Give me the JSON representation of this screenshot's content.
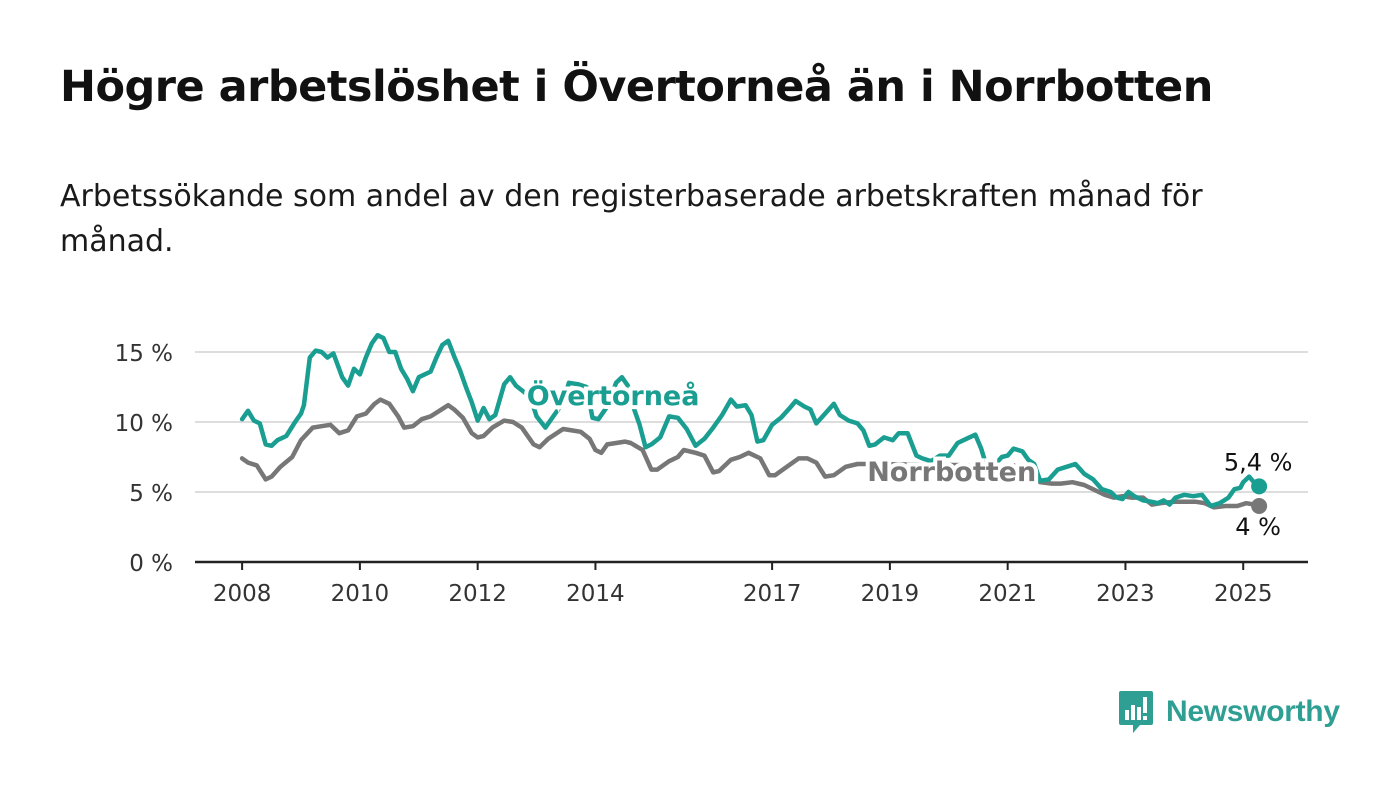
{
  "header": {
    "title": "Högre arbetslöshet i Övertorneå än i Norrbotten",
    "subtitle": "Arbetssökande som andel av den registerbaserade arbetskraften månad för månad."
  },
  "brand": {
    "name": "Newsworthy",
    "icon": "newsworthy-logo-icon",
    "color": "#2f9f94"
  },
  "chart_data": {
    "type": "line",
    "title": "Högre arbetslöshet i Övertorneå än i Norrbotten",
    "subtitle": "Arbetssökande som andel av den registerbaserade arbetskraften månad för månad.",
    "xlabel": "",
    "ylabel": "",
    "y_ticks": [
      0,
      5,
      10,
      15
    ],
    "y_tick_labels": [
      "0 %",
      "5 %",
      "10 %",
      "15 %"
    ],
    "ylim": [
      0,
      15.5
    ],
    "x_ticks": [
      2008,
      2010,
      2012,
      2014,
      2017,
      2019,
      2021,
      2023,
      2025
    ],
    "x_tick_labels": [
      "2008",
      "2010",
      "2012",
      "2014",
      "2017",
      "2019",
      "2021",
      "2023",
      "2025"
    ],
    "xlim": [
      2007.2,
      2026.1
    ],
    "grid": true,
    "legend": "inline labels",
    "series": [
      {
        "name": "Övertorneå",
        "color": "#1a9e91",
        "end_label": "5,4 %",
        "points": [
          [
            2008.0,
            10.2
          ],
          [
            2008.1,
            10.8
          ],
          [
            2008.2,
            10.1
          ],
          [
            2008.3,
            9.9
          ],
          [
            2008.4,
            8.4
          ],
          [
            2008.5,
            8.3
          ],
          [
            2008.6,
            8.7
          ],
          [
            2008.75,
            9.0
          ],
          [
            2008.9,
            10.0
          ],
          [
            2009.0,
            10.6
          ],
          [
            2009.05,
            11.2
          ],
          [
            2009.15,
            14.6
          ],
          [
            2009.25,
            15.1
          ],
          [
            2009.35,
            15.0
          ],
          [
            2009.45,
            14.6
          ],
          [
            2009.55,
            14.9
          ],
          [
            2009.7,
            13.2
          ],
          [
            2009.8,
            12.6
          ],
          [
            2009.9,
            13.8
          ],
          [
            2010.0,
            13.4
          ],
          [
            2010.1,
            14.6
          ],
          [
            2010.2,
            15.6
          ],
          [
            2010.3,
            16.2
          ],
          [
            2010.4,
            16.0
          ],
          [
            2010.5,
            15.0
          ],
          [
            2010.6,
            15.0
          ],
          [
            2010.7,
            13.8
          ],
          [
            2010.8,
            13.1
          ],
          [
            2010.9,
            12.2
          ],
          [
            2011.0,
            13.2
          ],
          [
            2011.2,
            13.6
          ],
          [
            2011.3,
            14.6
          ],
          [
            2011.4,
            15.5
          ],
          [
            2011.5,
            15.8
          ],
          [
            2011.6,
            14.7
          ],
          [
            2011.7,
            13.7
          ],
          [
            2011.8,
            12.5
          ],
          [
            2011.9,
            11.4
          ],
          [
            2012.0,
            10.1
          ],
          [
            2012.1,
            11.0
          ],
          [
            2012.2,
            10.2
          ],
          [
            2012.3,
            10.5
          ],
          [
            2012.45,
            12.7
          ],
          [
            2012.55,
            13.2
          ],
          [
            2012.65,
            12.6
          ],
          [
            2012.8,
            12.1
          ],
          [
            2012.9,
            11.7
          ],
          [
            2013.0,
            10.4
          ],
          [
            2013.15,
            9.6
          ],
          [
            2013.3,
            10.5
          ],
          [
            2013.45,
            11.4
          ],
          [
            2013.55,
            12.8
          ],
          [
            2013.7,
            12.7
          ],
          [
            2013.85,
            12.5
          ],
          [
            2013.95,
            10.3
          ],
          [
            2014.05,
            10.2
          ],
          [
            2014.2,
            11.1
          ],
          [
            2014.35,
            12.8
          ],
          [
            2014.45,
            13.2
          ],
          [
            2014.55,
            12.6
          ],
          [
            2014.65,
            11.0
          ],
          [
            2014.75,
            9.8
          ],
          [
            2014.85,
            8.2
          ],
          [
            2014.95,
            8.4
          ],
          [
            2015.1,
            8.9
          ],
          [
            2015.25,
            10.4
          ],
          [
            2015.4,
            10.3
          ],
          [
            2015.55,
            9.5
          ],
          [
            2015.7,
            8.3
          ],
          [
            2015.85,
            8.8
          ],
          [
            2016.0,
            9.6
          ],
          [
            2016.15,
            10.5
          ],
          [
            2016.3,
            11.6
          ],
          [
            2016.4,
            11.1
          ],
          [
            2016.55,
            11.2
          ],
          [
            2016.65,
            10.5
          ],
          [
            2016.75,
            8.6
          ],
          [
            2016.85,
            8.7
          ],
          [
            2017.0,
            9.8
          ],
          [
            2017.15,
            10.3
          ],
          [
            2017.3,
            11.0
          ],
          [
            2017.4,
            11.5
          ],
          [
            2017.55,
            11.1
          ],
          [
            2017.65,
            10.9
          ],
          [
            2017.75,
            9.9
          ],
          [
            2017.9,
            10.6
          ],
          [
            2018.05,
            11.3
          ],
          [
            2018.15,
            10.5
          ],
          [
            2018.3,
            10.1
          ],
          [
            2018.45,
            9.9
          ],
          [
            2018.55,
            9.4
          ],
          [
            2018.65,
            8.3
          ],
          [
            2018.75,
            8.4
          ],
          [
            2018.9,
            8.9
          ],
          [
            2019.05,
            8.7
          ],
          [
            2019.15,
            9.2
          ],
          [
            2019.3,
            9.2
          ],
          [
            2019.45,
            7.6
          ],
          [
            2019.55,
            7.4
          ],
          [
            2019.7,
            7.2
          ],
          [
            2019.85,
            7.6
          ],
          [
            2020.0,
            7.6
          ],
          [
            2020.15,
            8.5
          ],
          [
            2020.3,
            8.8
          ],
          [
            2020.45,
            9.1
          ],
          [
            2020.55,
            8.1
          ],
          [
            2020.65,
            6.7
          ],
          [
            2020.75,
            6.8
          ],
          [
            2020.9,
            7.5
          ],
          [
            2021.0,
            7.6
          ],
          [
            2021.1,
            8.1
          ],
          [
            2021.25,
            7.9
          ],
          [
            2021.35,
            7.3
          ],
          [
            2021.45,
            7.0
          ],
          [
            2021.55,
            5.8
          ],
          [
            2021.7,
            5.9
          ],
          [
            2021.85,
            6.6
          ],
          [
            2022.0,
            6.8
          ],
          [
            2022.15,
            7.0
          ],
          [
            2022.3,
            6.3
          ],
          [
            2022.45,
            5.9
          ],
          [
            2022.6,
            5.2
          ],
          [
            2022.75,
            5.0
          ],
          [
            2022.85,
            4.6
          ],
          [
            2022.95,
            4.5
          ],
          [
            2023.05,
            5.0
          ],
          [
            2023.15,
            4.7
          ],
          [
            2023.3,
            4.4
          ],
          [
            2023.45,
            4.3
          ],
          [
            2023.55,
            4.2
          ],
          [
            2023.65,
            4.4
          ],
          [
            2023.75,
            4.1
          ],
          [
            2023.85,
            4.6
          ],
          [
            2024.0,
            4.8
          ],
          [
            2024.15,
            4.7
          ],
          [
            2024.3,
            4.8
          ],
          [
            2024.45,
            4.0
          ],
          [
            2024.6,
            4.2
          ],
          [
            2024.75,
            4.6
          ],
          [
            2024.85,
            5.2
          ],
          [
            2024.95,
            5.3
          ],
          [
            2025.0,
            5.7
          ],
          [
            2025.1,
            6.1
          ],
          [
            2025.2,
            5.6
          ],
          [
            2025.27,
            5.4
          ]
        ]
      },
      {
        "name": "Norrbotten",
        "color": "#777777",
        "end_label": "4 %",
        "points": [
          [
            2008.0,
            7.4
          ],
          [
            2008.1,
            7.1
          ],
          [
            2008.25,
            6.9
          ],
          [
            2008.4,
            5.9
          ],
          [
            2008.5,
            6.1
          ],
          [
            2008.65,
            6.8
          ],
          [
            2008.85,
            7.5
          ],
          [
            2009.0,
            8.7
          ],
          [
            2009.2,
            9.6
          ],
          [
            2009.35,
            9.7
          ],
          [
            2009.5,
            9.8
          ],
          [
            2009.65,
            9.2
          ],
          [
            2009.8,
            9.4
          ],
          [
            2009.95,
            10.4
          ],
          [
            2010.1,
            10.6
          ],
          [
            2010.25,
            11.3
          ],
          [
            2010.35,
            11.6
          ],
          [
            2010.5,
            11.3
          ],
          [
            2010.65,
            10.4
          ],
          [
            2010.75,
            9.6
          ],
          [
            2010.9,
            9.7
          ],
          [
            2011.05,
            10.2
          ],
          [
            2011.2,
            10.4
          ],
          [
            2011.35,
            10.8
          ],
          [
            2011.5,
            11.2
          ],
          [
            2011.6,
            10.9
          ],
          [
            2011.75,
            10.3
          ],
          [
            2011.9,
            9.2
          ],
          [
            2012.0,
            8.9
          ],
          [
            2012.1,
            9.0
          ],
          [
            2012.25,
            9.6
          ],
          [
            2012.45,
            10.1
          ],
          [
            2012.6,
            10.0
          ],
          [
            2012.75,
            9.6
          ],
          [
            2012.95,
            8.4
          ],
          [
            2013.05,
            8.2
          ],
          [
            2013.2,
            8.8
          ],
          [
            2013.45,
            9.5
          ],
          [
            2013.6,
            9.4
          ],
          [
            2013.75,
            9.3
          ],
          [
            2013.9,
            8.8
          ],
          [
            2014.0,
            8.0
          ],
          [
            2014.1,
            7.8
          ],
          [
            2014.2,
            8.4
          ],
          [
            2014.35,
            8.5
          ],
          [
            2014.5,
            8.6
          ],
          [
            2014.6,
            8.5
          ],
          [
            2014.8,
            8.0
          ],
          [
            2014.95,
            6.6
          ],
          [
            2015.05,
            6.6
          ],
          [
            2015.25,
            7.2
          ],
          [
            2015.4,
            7.5
          ],
          [
            2015.5,
            8.0
          ],
          [
            2015.7,
            7.8
          ],
          [
            2015.85,
            7.6
          ],
          [
            2016.0,
            6.4
          ],
          [
            2016.1,
            6.5
          ],
          [
            2016.3,
            7.3
          ],
          [
            2016.45,
            7.5
          ],
          [
            2016.6,
            7.8
          ],
          [
            2016.8,
            7.4
          ],
          [
            2016.95,
            6.2
          ],
          [
            2017.05,
            6.2
          ],
          [
            2017.25,
            6.8
          ],
          [
            2017.45,
            7.4
          ],
          [
            2017.6,
            7.4
          ],
          [
            2017.75,
            7.1
          ],
          [
            2017.9,
            6.1
          ],
          [
            2018.05,
            6.2
          ],
          [
            2018.25,
            6.8
          ],
          [
            2018.45,
            7.0
          ],
          [
            2018.6,
            7.0
          ],
          [
            2020.6,
            6.9
          ],
          [
            2020.8,
            6.9
          ],
          [
            2020.95,
            6.8
          ],
          [
            2021.15,
            6.9
          ],
          [
            2021.3,
            6.6
          ],
          [
            2021.45,
            6.1
          ],
          [
            2021.55,
            5.7
          ],
          [
            2021.75,
            5.6
          ],
          [
            2021.9,
            5.6
          ],
          [
            2022.1,
            5.7
          ],
          [
            2022.3,
            5.5
          ],
          [
            2022.5,
            5.1
          ],
          [
            2022.65,
            4.8
          ],
          [
            2022.8,
            4.6
          ],
          [
            2022.95,
            4.7
          ],
          [
            2023.1,
            4.6
          ],
          [
            2023.3,
            4.6
          ],
          [
            2023.45,
            4.1
          ],
          [
            2023.6,
            4.2
          ],
          [
            2023.8,
            4.3
          ],
          [
            2024.0,
            4.3
          ],
          [
            2024.2,
            4.3
          ],
          [
            2024.35,
            4.2
          ],
          [
            2024.5,
            3.9
          ],
          [
            2024.7,
            4.0
          ],
          [
            2024.9,
            4.0
          ],
          [
            2025.05,
            4.2
          ],
          [
            2025.2,
            4.1
          ],
          [
            2025.27,
            4.0
          ]
        ]
      }
    ],
    "inline_labels": [
      {
        "series": "Övertorneå",
        "text": "Övertorneå",
        "x": 2014.3,
        "y": 11.2
      },
      {
        "series": "Norrbotten",
        "text": "Norrbotten",
        "x": 2020.05,
        "y": 5.8
      }
    ]
  }
}
